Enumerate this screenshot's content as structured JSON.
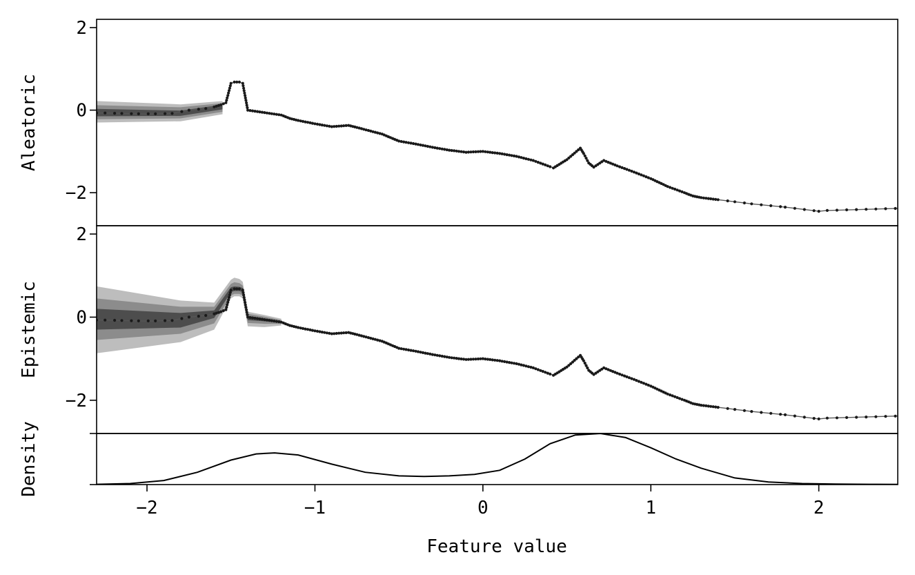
{
  "figure": {
    "xlabel": "Feature value",
    "xlim": [
      -2.3,
      2.47
    ],
    "xticks": [
      -2,
      -1,
      0,
      1,
      2
    ],
    "xtick_labels": [
      "−2",
      "−1",
      "0",
      "1",
      "2"
    ],
    "colors": {
      "line": "#555555",
      "points": "#1a1a1a",
      "band_outer": "#bdbdbd",
      "band_mid": "#8c8c8c",
      "band_inner": "#4d4d4d",
      "density": "#000000"
    }
  },
  "chart_data": [
    {
      "type": "line",
      "ylabel": "Aleatoric",
      "ylim": [
        -2.8,
        2.2
      ],
      "yticks": [
        -2,
        0,
        2
      ],
      "ytick_labels": [
        "−2",
        "0",
        "2"
      ],
      "series": [
        {
          "x": [
            -2.3,
            -2.25,
            -2.15,
            -2.05,
            -1.95,
            -1.85,
            -1.75,
            -1.65,
            -1.6,
            -1.56,
            -1.53,
            -1.5,
            -1.48,
            -1.45,
            -1.43,
            -1.4,
            -1.3,
            -1.2,
            -1.15,
            -1.1,
            -1.0,
            -0.9,
            -0.8,
            -0.75,
            -0.6,
            -0.5,
            -0.4,
            -0.3,
            -0.2,
            -0.1,
            0.0,
            0.1,
            0.2,
            0.3,
            0.4,
            0.42,
            0.5,
            0.58,
            0.6,
            0.63,
            0.66,
            0.72,
            0.8,
            0.9,
            1.0,
            1.1,
            1.2,
            1.25,
            1.3,
            1.4,
            1.5,
            1.6,
            1.8,
            2.0,
            2.05,
            2.47
          ],
          "y": [
            -0.07,
            -0.07,
            -0.08,
            -0.09,
            -0.09,
            -0.08,
            0.0,
            0.04,
            0.08,
            0.13,
            0.18,
            0.65,
            0.68,
            0.68,
            0.65,
            0.0,
            -0.06,
            -0.12,
            -0.2,
            -0.25,
            -0.33,
            -0.4,
            -0.37,
            -0.42,
            -0.58,
            -0.75,
            -0.82,
            -0.9,
            -0.97,
            -1.02,
            -1.0,
            -1.05,
            -1.12,
            -1.22,
            -1.37,
            -1.4,
            -1.2,
            -0.92,
            -1.05,
            -1.28,
            -1.38,
            -1.22,
            -1.35,
            -1.5,
            -1.66,
            -1.85,
            -2.0,
            -2.08,
            -2.12,
            -2.17,
            -2.22,
            -2.27,
            -2.35,
            -2.45,
            -2.43,
            -2.38
          ]
        }
      ],
      "bands": {
        "x": [
          -2.3,
          -1.8,
          -1.55
        ],
        "outer": {
          "lower": [
            -0.3,
            -0.27,
            -0.1
          ],
          "upper": [
            0.22,
            0.14,
            0.22
          ]
        },
        "mid": {
          "lower": [
            -0.22,
            -0.2,
            -0.04
          ],
          "upper": [
            0.12,
            0.07,
            0.17
          ]
        },
        "inner": {
          "lower": [
            -0.15,
            -0.14,
            0.02
          ],
          "upper": [
            0.03,
            -0.01,
            0.13
          ]
        }
      }
    },
    {
      "type": "line",
      "ylabel": "Epistemic",
      "ylim": [
        -2.8,
        2.2
      ],
      "yticks": [
        -2,
        0,
        2
      ],
      "ytick_labels": [
        "−2",
        "0",
        "2"
      ],
      "series": [
        {
          "x": [
            -2.3,
            -2.25,
            -2.15,
            -2.05,
            -1.95,
            -1.85,
            -1.75,
            -1.65,
            -1.6,
            -1.56,
            -1.53,
            -1.5,
            -1.48,
            -1.45,
            -1.43,
            -1.4,
            -1.3,
            -1.2,
            -1.15,
            -1.1,
            -1.0,
            -0.9,
            -0.8,
            -0.75,
            -0.6,
            -0.5,
            -0.4,
            -0.3,
            -0.2,
            -0.1,
            0.0,
            0.1,
            0.2,
            0.3,
            0.4,
            0.42,
            0.5,
            0.58,
            0.6,
            0.63,
            0.66,
            0.72,
            0.8,
            0.9,
            1.0,
            1.1,
            1.2,
            1.25,
            1.3,
            1.4,
            1.5,
            1.6,
            1.8,
            2.0,
            2.05,
            2.47
          ],
          "y": [
            -0.07,
            -0.07,
            -0.08,
            -0.09,
            -0.09,
            -0.08,
            0.0,
            0.04,
            0.08,
            0.13,
            0.18,
            0.65,
            0.68,
            0.68,
            0.65,
            0.0,
            -0.06,
            -0.12,
            -0.2,
            -0.25,
            -0.33,
            -0.4,
            -0.37,
            -0.42,
            -0.58,
            -0.75,
            -0.82,
            -0.9,
            -0.97,
            -1.02,
            -1.0,
            -1.05,
            -1.12,
            -1.22,
            -1.37,
            -1.4,
            -1.2,
            -0.92,
            -1.05,
            -1.28,
            -1.38,
            -1.22,
            -1.35,
            -1.5,
            -1.66,
            -1.85,
            -2.0,
            -2.08,
            -2.12,
            -2.17,
            -2.22,
            -2.27,
            -2.35,
            -2.45,
            -2.43,
            -2.38
          ]
        }
      ],
      "bands": {
        "x": [
          -2.3,
          -1.8,
          -1.6,
          -1.5,
          -1.48,
          -1.45,
          -1.43,
          -1.4,
          -1.3,
          -1.2
        ],
        "outer": {
          "lower": [
            -0.87,
            -0.6,
            -0.3,
            0.45,
            0.5,
            0.5,
            0.45,
            -0.22,
            -0.24,
            -0.2
          ],
          "upper": [
            0.74,
            0.4,
            0.35,
            0.9,
            0.95,
            0.92,
            0.85,
            0.13,
            0.05,
            -0.04
          ]
        },
        "mid": {
          "lower": [
            -0.55,
            -0.4,
            -0.15,
            0.52,
            0.56,
            0.56,
            0.52,
            -0.14,
            -0.16,
            -0.16
          ],
          "upper": [
            0.45,
            0.25,
            0.25,
            0.8,
            0.84,
            0.82,
            0.76,
            0.08,
            0.01,
            -0.07
          ]
        },
        "inner": {
          "lower": [
            -0.3,
            -0.25,
            -0.02,
            0.6,
            0.63,
            0.63,
            0.6,
            -0.07,
            -0.1,
            -0.13
          ],
          "upper": [
            0.2,
            0.1,
            0.16,
            0.72,
            0.74,
            0.73,
            0.7,
            0.03,
            -0.03,
            -0.1
          ]
        }
      }
    },
    {
      "type": "area",
      "ylabel": "Density",
      "ylim": [
        0,
        1
      ],
      "series": [
        {
          "x": [
            -2.3,
            -2.1,
            -1.9,
            -1.7,
            -1.5,
            -1.35,
            -1.24,
            -1.1,
            -0.9,
            -0.7,
            -0.5,
            -0.35,
            -0.2,
            -0.05,
            0.1,
            0.25,
            0.4,
            0.55,
            0.7,
            0.85,
            1.0,
            1.15,
            1.3,
            1.5,
            1.7,
            1.9,
            2.1,
            2.3,
            2.47
          ],
          "y": [
            0.005,
            0.02,
            0.08,
            0.24,
            0.48,
            0.6,
            0.62,
            0.58,
            0.4,
            0.24,
            0.17,
            0.16,
            0.17,
            0.2,
            0.28,
            0.5,
            0.8,
            0.97,
            1.0,
            0.92,
            0.72,
            0.5,
            0.32,
            0.13,
            0.05,
            0.02,
            0.01,
            0.005,
            0.003
          ]
        }
      ]
    }
  ]
}
